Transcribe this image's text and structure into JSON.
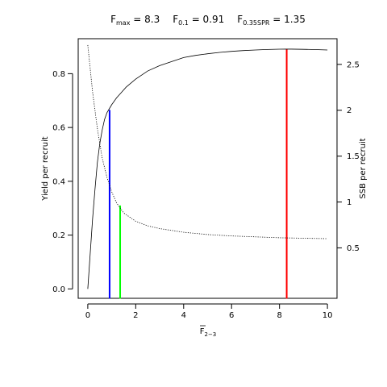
{
  "chart_data": {
    "type": "line",
    "title": {
      "fmax_main": "F",
      "fmax_sub": "max",
      "fmax_value": " = 8.3",
      "f01_main": "F",
      "f01_sub": "0.1",
      "f01_value": " = 0.91",
      "fspr_main": "F",
      "fspr_sub": "0.35SPR",
      "fspr_value": " = 1.35"
    },
    "xlabel": {
      "main": "F",
      "sub": "2−3"
    },
    "ylabel_left": "Yield per recruit",
    "ylabel_right": "SSB per recruit",
    "xlim": [
      -0.4,
      10.4
    ],
    "ylim_left": [
      -0.035,
      0.93
    ],
    "ylim_right": [
      -0.05,
      2.78
    ],
    "x_ticks": [
      "0",
      "2",
      "4",
      "6",
      "8",
      "10"
    ],
    "y_left_ticks": [
      "0.0",
      "0.2",
      "0.4",
      "0.6",
      "0.8"
    ],
    "y_right_ticks": [
      "0.5",
      "1",
      "1.5",
      "2",
      "2.5"
    ],
    "series": [
      {
        "axis": "left",
        "style": "solid",
        "color": "#000000",
        "x": [
          0,
          0.1,
          0.2,
          0.3,
          0.4,
          0.5,
          0.6,
          0.7,
          0.8,
          0.9,
          1.0,
          1.2,
          1.4,
          1.6,
          1.8,
          2.0,
          2.5,
          3.0,
          3.5,
          4.0,
          4.5,
          5.0,
          5.5,
          6.0,
          6.5,
          7.0,
          7.5,
          8.0,
          8.3,
          8.5,
          9.0,
          9.5,
          10.0
        ],
        "values": [
          0.0,
          0.13,
          0.26,
          0.37,
          0.47,
          0.54,
          0.59,
          0.63,
          0.655,
          0.67,
          0.685,
          0.71,
          0.73,
          0.75,
          0.765,
          0.78,
          0.81,
          0.83,
          0.845,
          0.86,
          0.868,
          0.874,
          0.879,
          0.883,
          0.886,
          0.888,
          0.89,
          0.891,
          0.8915,
          0.8912,
          0.8905,
          0.8895,
          0.888
        ]
      },
      {
        "axis": "right",
        "style": "dotted",
        "color": "#000000",
        "x": [
          0,
          0.2,
          0.4,
          0.6,
          0.8,
          1.0,
          1.2,
          1.5,
          2.0,
          2.5,
          3.0,
          4.0,
          5.0,
          6.0,
          7.0,
          8.0,
          9.0,
          10.0
        ],
        "values": [
          2.71,
          2.2,
          1.8,
          1.48,
          1.27,
          1.11,
          0.99,
          0.88,
          0.79,
          0.74,
          0.71,
          0.67,
          0.645,
          0.63,
          0.62,
          0.61,
          0.605,
          0.6
        ]
      }
    ],
    "reference_lines": [
      {
        "name": "F0.1",
        "x": 0.91,
        "y_top": 0.665,
        "color": "#0000ff"
      },
      {
        "name": "F0.35SPR",
        "x": 1.35,
        "y_top": 0.31,
        "color": "#00ff00"
      },
      {
        "name": "Fmax",
        "x": 8.3,
        "y_top": 0.8915,
        "color": "#ff0000"
      }
    ]
  }
}
